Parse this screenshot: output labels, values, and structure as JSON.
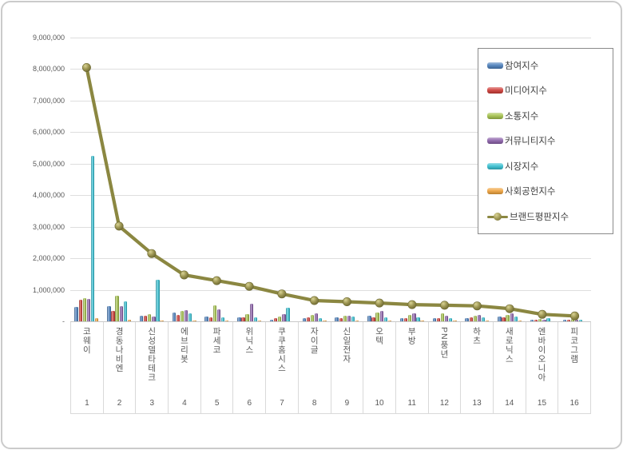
{
  "chart_data": {
    "type": "bar",
    "subtype": "grouped bars with line overlay (brand reputation index)",
    "title": "",
    "xlabel": "",
    "ylabel": "",
    "categories": [
      "코웨이",
      "경동나비엔",
      "신성델타테크",
      "에브리봇",
      "파세코",
      "위닉스",
      "쿠쿠홈시스",
      "자이글",
      "신일전자",
      "오텍",
      "부방",
      "PN풍년",
      "하츠",
      "새로닉스",
      "엔바이오니아",
      "피코그램"
    ],
    "rank_labels": [
      "1",
      "2",
      "3",
      "4",
      "5",
      "6",
      "7",
      "8",
      "9",
      "10",
      "11",
      "12",
      "13",
      "14",
      "15",
      "16"
    ],
    "ylim": [
      0,
      9000000
    ],
    "ytick_step": 1000000,
    "ytick_labels": [
      "-",
      "1,000,000",
      "2,000,000",
      "3,000,000",
      "4,000,000",
      "5,000,000",
      "6,000,000",
      "7,000,000",
      "8,000,000",
      "9,000,000"
    ],
    "grid": true,
    "legend_position": "top-right",
    "series": [
      {
        "name": "참여지수",
        "kind": "bar",
        "color": "#4A7EBB",
        "values": [
          460000,
          480000,
          170000,
          290000,
          150000,
          120000,
          60000,
          90000,
          120000,
          170000,
          90000,
          110000,
          110000,
          160000,
          50000,
          40000
        ]
      },
      {
        "name": "미디어지수",
        "kind": "bar",
        "color": "#CE3B36",
        "values": [
          690000,
          330000,
          170000,
          210000,
          120000,
          120000,
          90000,
          120000,
          100000,
          140000,
          110000,
          100000,
          130000,
          130000,
          60000,
          50000
        ]
      },
      {
        "name": "소통지수",
        "kind": "bar",
        "color": "#A3C14A",
        "values": [
          740000,
          820000,
          230000,
          330000,
          500000,
          230000,
          150000,
          200000,
          170000,
          270000,
          200000,
          250000,
          180000,
          200000,
          70000,
          70000
        ]
      },
      {
        "name": "커뮤니티지수",
        "kind": "bar",
        "color": "#8A5FA8",
        "values": [
          710000,
          490000,
          150000,
          350000,
          390000,
          550000,
          240000,
          250000,
          180000,
          340000,
          250000,
          190000,
          210000,
          260000,
          60000,
          60000
        ]
      },
      {
        "name": "시장지수",
        "kind": "bar",
        "color": "#35BFD1",
        "values": [
          5250000,
          640000,
          1310000,
          250000,
          120000,
          120000,
          430000,
          100000,
          150000,
          140000,
          130000,
          100000,
          140000,
          150000,
          100000,
          50000
        ]
      },
      {
        "name": "사회공헌지수",
        "kind": "bar",
        "color": "#EFA23C",
        "values": [
          90000,
          60000,
          30000,
          30000,
          20000,
          20000,
          10000,
          20000,
          20000,
          20000,
          20000,
          20000,
          20000,
          20000,
          10000,
          10000
        ]
      },
      {
        "name": "브랜드평판지수",
        "kind": "line",
        "color": "#8B8741",
        "marker_color": "#9A9350",
        "values": [
          8050000,
          3020000,
          2150000,
          1470000,
          1290000,
          1110000,
          870000,
          660000,
          620000,
          580000,
          530000,
          510000,
          490000,
          400000,
          220000,
          170000
        ]
      }
    ],
    "colors": {
      "gridline": "#dedede",
      "axis_text": "#595959",
      "legend_border": "#8a8a8a",
      "frame_border": "#cbcbcb",
      "background": "#ffffff"
    }
  }
}
